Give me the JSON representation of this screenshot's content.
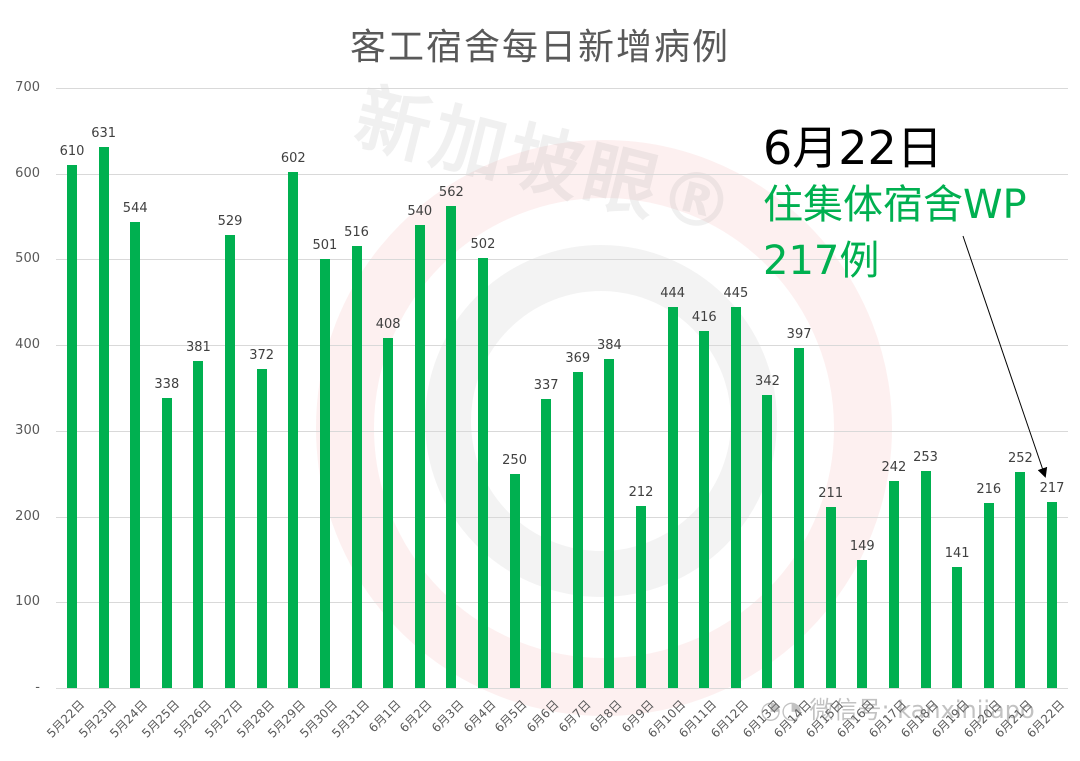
{
  "title": "客工宿舍每日新增病例",
  "watermark": {
    "text": "新加坡眼®",
    "wechat": "微信号: kanxinjiapo"
  },
  "annotation": {
    "date": "6月22日",
    "line1": "住集体宿舍WP",
    "line2": "217例",
    "arrow_target": "6月22日"
  },
  "colors": {
    "bar": "#00b050",
    "annotation": "#00b050",
    "grid": "#d9d9d9",
    "title": "#595959"
  },
  "y_axis": {
    "ticks": [
      "-",
      "100",
      "200",
      "300",
      "400",
      "500",
      "600",
      "700"
    ]
  },
  "chart_data": {
    "type": "bar",
    "title": "客工宿舍每日新增病例",
    "xlabel": "",
    "ylabel": "",
    "ylim": [
      0,
      700
    ],
    "yticks": [
      0,
      100,
      200,
      300,
      400,
      500,
      600,
      700
    ],
    "grid": true,
    "legend": "none",
    "categories": [
      "5月22日",
      "5月23日",
      "5月24日",
      "5月25日",
      "5月26日",
      "5月27日",
      "5月28日",
      "5月29日",
      "5月30日",
      "5月31日",
      "6月1日",
      "6月2日",
      "6月3日",
      "6月4日",
      "6月5日",
      "6月6日",
      "6月7日",
      "6月8日",
      "6月9日",
      "6月10日",
      "6月11日",
      "6月12日",
      "6月13日",
      "6月14日",
      "6月15日",
      "6月16日",
      "6月17日",
      "6月18日",
      "6月19日",
      "6月20日",
      "6月21日",
      "6月22日"
    ],
    "values": [
      610,
      631,
      544,
      338,
      381,
      529,
      372,
      602,
      501,
      516,
      408,
      540,
      562,
      502,
      250,
      337,
      369,
      384,
      212,
      444,
      416,
      445,
      342,
      397,
      211,
      149,
      242,
      253,
      141,
      216,
      252,
      217
    ],
    "annotations": [
      {
        "text": "6月22日 住集体宿舍WP 217例",
        "points_to": "6月22日"
      }
    ]
  }
}
